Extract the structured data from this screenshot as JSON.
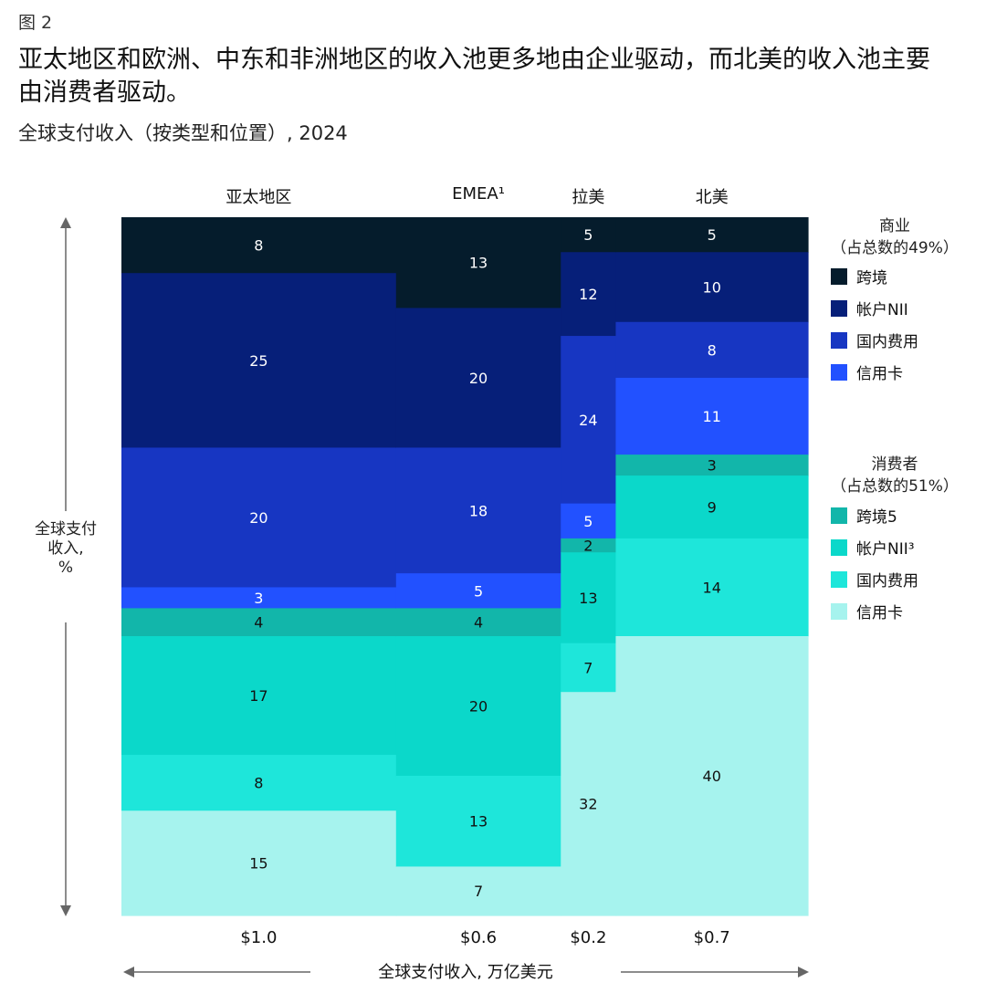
{
  "figure_label": "图 2",
  "title": "亚太地区和欧洲、中东和非洲地区的收入池更多地由企业驱动，而北美的收入池主要由消费者驱动。",
  "subtitle": "全球支付收入（按类型和位置）, 2024",
  "y_axis_label_lines": [
    "全球支付",
    "收入,",
    "%"
  ],
  "x_axis_label": "全球支付收入, 万亿美元",
  "legend": {
    "business_title": "商业",
    "business_share": "（占总数的49%）",
    "consumer_title": "消费者",
    "consumer_share": "（占总数的51%）",
    "business_items": [
      {
        "label": "跨境",
        "color": "#051C2C"
      },
      {
        "label": "帐户NII",
        "color": "#061F79"
      },
      {
        "label": "国内费用",
        "color": "#1736C2"
      },
      {
        "label": "信用卡",
        "color": "#2251FF"
      }
    ],
    "consumer_items": [
      {
        "label": "跨境5",
        "color": "#12B6AA"
      },
      {
        "label": "帐户NII³",
        "color": "#0BD8CA"
      },
      {
        "label": "国内费用",
        "color": "#1EE6DA"
      },
      {
        "label": "信用卡",
        "color": "#A6F3EE"
      }
    ]
  },
  "chart_data": {
    "type": "marimekko",
    "segment_order_top_to_bottom": [
      "商业 跨境",
      "商业 帐户NII",
      "商业 国内费用",
      "商业 信用卡",
      "消费者 跨境",
      "消费者 帐户NII",
      "消费者 国内费用",
      "消费者 信用卡"
    ],
    "segment_colors": [
      "#051C2C",
      "#061F79",
      "#1736C2",
      "#2251FF",
      "#12B6AA",
      "#0BD8CA",
      "#1EE6DA",
      "#A6F3EE"
    ],
    "columns": [
      {
        "name": "亚太地区",
        "width_value": 1.0,
        "width_label": "$1.0",
        "values": [
          8,
          25,
          20,
          3,
          4,
          17,
          8,
          15
        ]
      },
      {
        "name": "EMEA¹",
        "width_value": 0.6,
        "width_label": "$0.6",
        "values": [
          13,
          20,
          18,
          5,
          4,
          20,
          13,
          7
        ]
      },
      {
        "name": "拉美",
        "width_value": 0.2,
        "width_label": "$0.2",
        "values": [
          5,
          12,
          24,
          5,
          2,
          13,
          7,
          32
        ]
      },
      {
        "name": "北美",
        "width_value": 0.7,
        "width_label": "$0.7",
        "values": [
          5,
          10,
          8,
          11,
          3,
          9,
          14,
          40
        ]
      }
    ],
    "ylim": [
      0,
      100
    ]
  }
}
